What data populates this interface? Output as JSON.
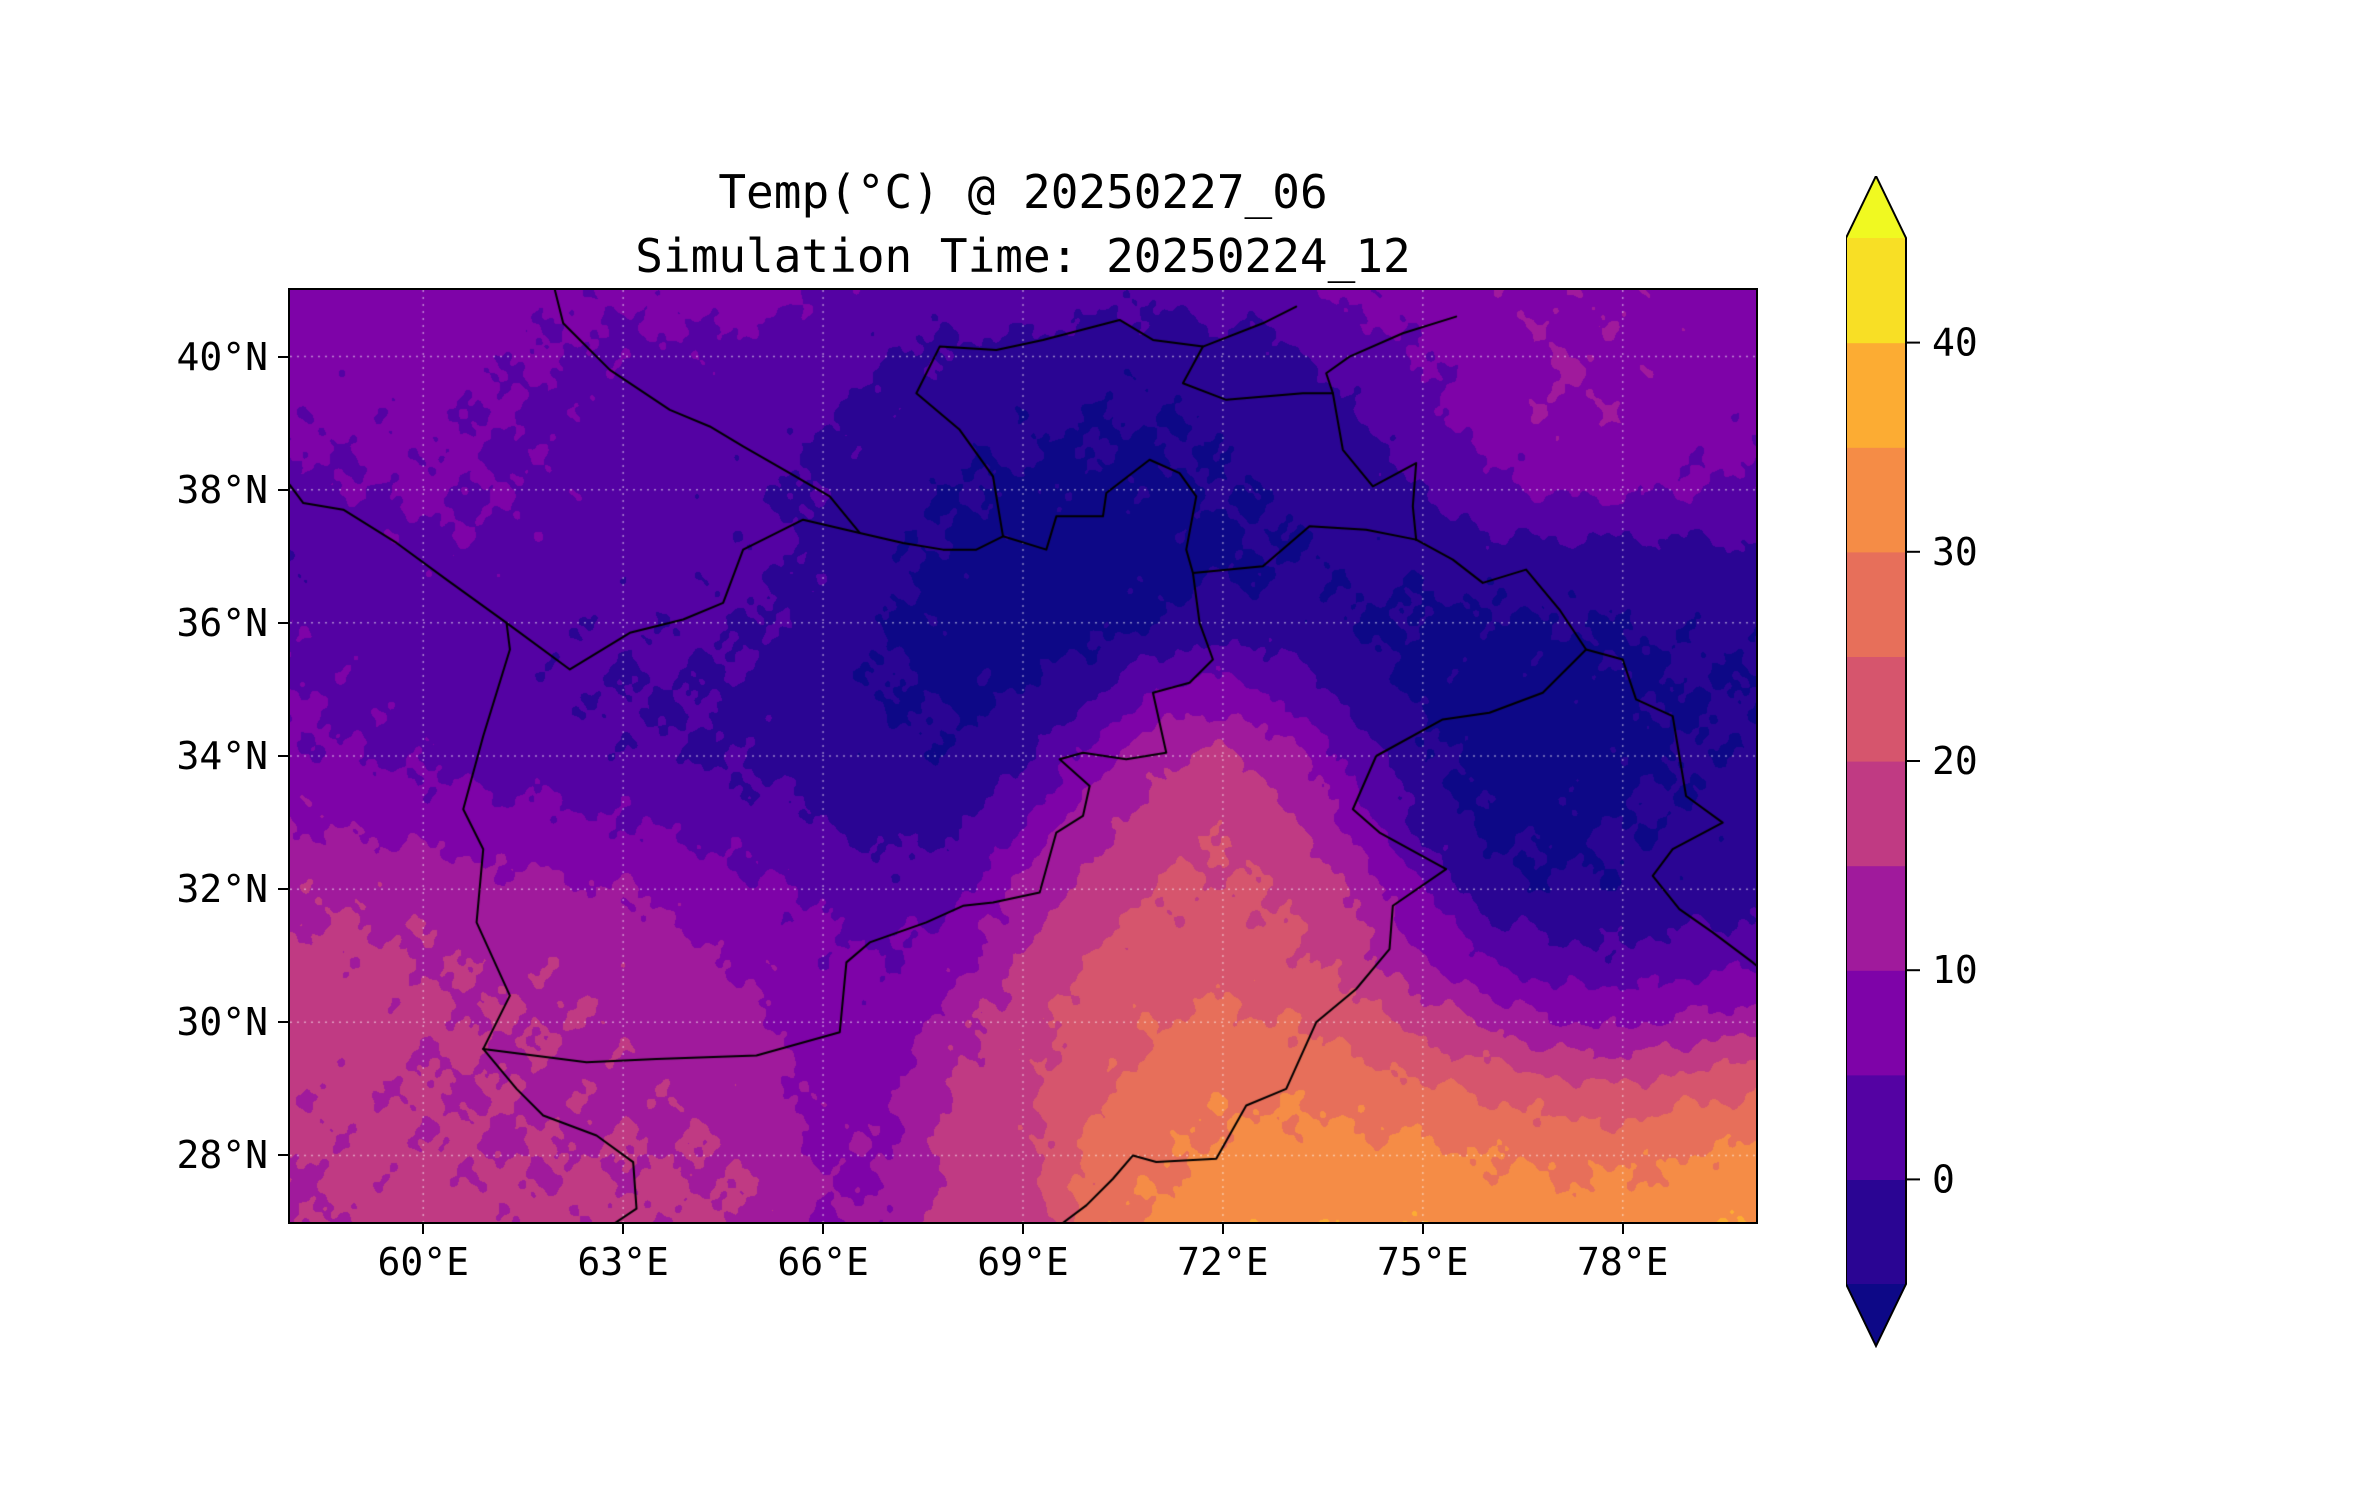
{
  "title": {
    "line1": "Temp(°C) @ 20250227_06",
    "line2": "Simulation Time: 20250224_12"
  },
  "chart_data": {
    "type": "heatmap",
    "title": "Temp(°C) @ 20250227_06",
    "subtitle": "Simulation Time: 20250224_12",
    "variable": "Temp",
    "units": "°C",
    "valid_time": "20250227_06",
    "simulation_time": "20250224_12",
    "grid_on": true,
    "extent": {
      "lon_min": 58,
      "lon_max": 80,
      "lat_min": 27,
      "lat_max": 41
    },
    "x_ticks": [
      {
        "value": 60,
        "label": "60°E"
      },
      {
        "value": 63,
        "label": "63°E"
      },
      {
        "value": 66,
        "label": "66°E"
      },
      {
        "value": 69,
        "label": "69°E"
      },
      {
        "value": 72,
        "label": "72°E"
      },
      {
        "value": 75,
        "label": "75°E"
      },
      {
        "value": 78,
        "label": "78°E"
      }
    ],
    "y_ticks": [
      {
        "value": 40,
        "label": "40°N"
      },
      {
        "value": 38,
        "label": "38°N"
      },
      {
        "value": 36,
        "label": "36°N"
      },
      {
        "value": 34,
        "label": "34°N"
      },
      {
        "value": 32,
        "label": "32°N"
      },
      {
        "value": 30,
        "label": "30°N"
      },
      {
        "value": 28,
        "label": "28°N"
      }
    ],
    "colorbar": {
      "orientation": "vertical",
      "position": "right",
      "extend": "both",
      "levels": [
        -5,
        0,
        5,
        10,
        15,
        20,
        25,
        30,
        35,
        40,
        45
      ],
      "band_colors": [
        "#2a0593",
        "#5402a3",
        "#7e03a8",
        "#a01a9c",
        "#c03a83",
        "#d6556d",
        "#e76f5a",
        "#f58c46",
        "#fcac33",
        "#f8df25"
      ],
      "under_color": "#0d0887",
      "over_color": "#f0f921",
      "tick_values": [
        0,
        10,
        20,
        30,
        40
      ],
      "tick_labels": [
        "0",
        "10",
        "20",
        "30",
        "40"
      ]
    },
    "temperature_grid": {
      "lon_start": 58,
      "lon_step": 1,
      "lat_start": 41,
      "lat_step": -1,
      "values": [
        [
          8,
          8,
          8,
          7,
          6,
          6,
          7,
          7,
          5,
          2,
          3,
          4,
          2,
          1,
          2,
          4,
          6,
          8,
          9,
          9,
          9,
          8,
          8
        ],
        [
          7,
          7,
          7,
          6,
          5,
          4,
          4,
          3,
          2,
          0,
          -1,
          -2,
          -3,
          -3,
          -2,
          -1,
          2,
          5,
          8,
          10,
          9,
          8,
          7
        ],
        [
          6,
          6,
          6,
          5,
          4,
          3,
          3,
          2,
          0,
          -2,
          -3,
          -4,
          -5,
          -5,
          -4,
          -3,
          -1,
          3,
          7,
          10,
          9,
          7,
          6
        ],
        [
          3,
          5,
          6,
          5,
          4,
          3,
          2,
          1,
          -1,
          -3,
          -5,
          -6,
          -6,
          -6,
          -5,
          -4,
          -2,
          0,
          3,
          6,
          6,
          5,
          4
        ],
        [
          0,
          2,
          4,
          4,
          3,
          2,
          2,
          1,
          -1,
          -4,
          -6,
          -7,
          -7,
          -7,
          -6,
          -5,
          -4,
          -3,
          -2,
          -2,
          -2,
          -2,
          -1
        ],
        [
          4,
          3,
          2,
          2,
          1,
          1,
          1,
          0,
          -2,
          -5,
          -7,
          -8,
          -7,
          -5,
          -3,
          -3,
          -5,
          -6,
          -6,
          -5,
          -5,
          -4,
          -4
        ],
        [
          5,
          4,
          3,
          2,
          1,
          0,
          0,
          -1,
          -3,
          -5,
          -6,
          -5,
          -2,
          5,
          7,
          3,
          -3,
          -6,
          -7,
          -7,
          -6,
          -5,
          -5
        ],
        [
          6,
          5,
          4,
          3,
          2,
          1,
          0,
          -1,
          -2,
          -4,
          -4,
          -1,
          7,
          14,
          16,
          12,
          3,
          -4,
          -7,
          -7,
          -6,
          -5,
          -4
        ],
        [
          10,
          9,
          8,
          7,
          6,
          5,
          4,
          2,
          0,
          -2,
          -1,
          5,
          13,
          18,
          19,
          16,
          8,
          -2,
          -6,
          -6,
          -5,
          -4,
          -3
        ],
        [
          14,
          14,
          13,
          12,
          11,
          10,
          8,
          6,
          4,
          2,
          4,
          11,
          17,
          20,
          21,
          19,
          14,
          5,
          -3,
          -5,
          -4,
          -3,
          -2
        ],
        [
          16,
          16,
          15,
          14,
          14,
          13,
          11,
          9,
          6,
          5,
          8,
          15,
          20,
          22,
          23,
          21,
          17,
          10,
          4,
          1,
          1,
          2,
          3
        ],
        [
          17,
          17,
          16,
          15,
          15,
          14,
          13,
          11,
          7,
          7,
          13,
          18,
          22,
          25,
          26,
          25,
          22,
          18,
          14,
          10,
          9,
          11,
          13
        ],
        [
          16,
          16,
          15,
          15,
          14,
          14,
          14,
          13,
          8,
          9,
          16,
          19,
          24,
          27,
          29,
          29,
          28,
          26,
          24,
          22,
          21,
          23,
          25
        ],
        [
          15,
          16,
          16,
          15,
          15,
          15,
          15,
          14,
          9,
          10,
          17,
          18,
          26,
          29,
          31,
          32,
          32,
          31,
          30,
          29,
          29,
          30,
          31
        ],
        [
          14,
          16,
          17,
          16,
          16,
          16,
          16,
          15,
          10,
          11,
          18,
          16,
          28,
          31,
          33,
          34,
          34,
          34,
          33,
          32,
          32,
          33,
          35
        ]
      ]
    },
    "borders": [
      [
        [
          60.9,
          29.6
        ],
        [
          61.3,
          30.4
        ],
        [
          60.8,
          31.5
        ],
        [
          60.9,
          32.6
        ],
        [
          60.6,
          33.2
        ],
        [
          60.9,
          34.3
        ],
        [
          61.3,
          35.6
        ],
        [
          61.25,
          36.0
        ],
        [
          62.2,
          35.3
        ],
        [
          63.1,
          35.85
        ],
        [
          63.9,
          36.05
        ],
        [
          64.5,
          36.3
        ],
        [
          64.8,
          37.1
        ],
        [
          65.7,
          37.55
        ],
        [
          66.55,
          37.35
        ],
        [
          67.2,
          37.2
        ],
        [
          67.8,
          37.1
        ],
        [
          68.3,
          37.1
        ],
        [
          68.7,
          37.3
        ],
        [
          69.35,
          37.1
        ],
        [
          69.5,
          37.6
        ],
        [
          70.2,
          37.6
        ],
        [
          70.25,
          37.95
        ],
        [
          70.9,
          38.45
        ],
        [
          71.35,
          38.25
        ],
        [
          71.6,
          37.9
        ],
        [
          71.45,
          37.1
        ],
        [
          71.55,
          36.75
        ],
        [
          72.6,
          36.85
        ],
        [
          73.3,
          37.45
        ],
        [
          74.15,
          37.4
        ],
        [
          74.9,
          37.25
        ]
      ],
      [
        [
          61.25,
          36.0
        ],
        [
          60.35,
          36.65
        ],
        [
          59.6,
          37.2
        ],
        [
          58.8,
          37.7
        ],
        [
          58.2,
          37.8
        ],
        [
          57.9,
          38.2
        ]
      ],
      [
        [
          71.55,
          36.75
        ],
        [
          71.65,
          36.0
        ],
        [
          71.85,
          35.45
        ],
        [
          71.5,
          35.1
        ],
        [
          70.95,
          34.95
        ],
        [
          71.15,
          34.05
        ],
        [
          70.55,
          33.95
        ],
        [
          69.9,
          34.05
        ],
        [
          69.55,
          33.95
        ],
        [
          70.0,
          33.55
        ],
        [
          69.9,
          33.1
        ],
        [
          69.5,
          32.85
        ],
        [
          69.25,
          31.95
        ],
        [
          68.55,
          31.8
        ],
        [
          68.1,
          31.75
        ],
        [
          67.55,
          31.5
        ],
        [
          66.7,
          31.2
        ],
        [
          66.35,
          30.9
        ],
        [
          66.25,
          29.85
        ],
        [
          65.0,
          29.5
        ],
        [
          63.5,
          29.45
        ],
        [
          62.45,
          29.4
        ],
        [
          60.9,
          29.6
        ]
      ],
      [
        [
          60.9,
          29.6
        ],
        [
          61.4,
          29.0
        ],
        [
          61.8,
          28.6
        ],
        [
          62.6,
          28.3
        ],
        [
          63.15,
          27.9
        ],
        [
          63.2,
          27.2
        ],
        [
          62.75,
          26.9
        ]
      ],
      [
        [
          66.55,
          37.35
        ],
        [
          66.1,
          37.9
        ],
        [
          65.5,
          38.25
        ],
        [
          64.8,
          38.65
        ],
        [
          64.3,
          38.95
        ],
        [
          63.7,
          39.2
        ],
        [
          62.8,
          39.8
        ],
        [
          62.1,
          40.5
        ],
        [
          61.95,
          41.1
        ]
      ],
      [
        [
          68.7,
          37.3
        ],
        [
          68.55,
          38.2
        ],
        [
          68.05,
          38.9
        ],
        [
          67.4,
          39.45
        ],
        [
          67.75,
          40.15
        ],
        [
          68.6,
          40.1
        ],
        [
          69.3,
          40.25
        ],
        [
          70.45,
          40.55
        ],
        [
          70.95,
          40.25
        ],
        [
          71.7,
          40.15
        ],
        [
          72.6,
          40.5
        ],
        [
          73.1,
          40.75
        ]
      ],
      [
        [
          71.7,
          40.15
        ],
        [
          71.4,
          39.6
        ],
        [
          72.05,
          39.35
        ],
        [
          73.2,
          39.45
        ],
        [
          73.65,
          39.45
        ],
        [
          73.55,
          39.75
        ],
        [
          73.9,
          40.0
        ],
        [
          74.7,
          40.35
        ],
        [
          75.5,
          40.6
        ]
      ],
      [
        [
          73.65,
          39.45
        ],
        [
          73.8,
          38.6
        ],
        [
          74.25,
          38.05
        ],
        [
          74.9,
          38.4
        ],
        [
          74.85,
          37.75
        ],
        [
          74.9,
          37.25
        ]
      ],
      [
        [
          74.9,
          37.25
        ],
        [
          75.45,
          36.95
        ],
        [
          75.9,
          36.6
        ],
        [
          76.55,
          36.8
        ],
        [
          77.05,
          36.2
        ],
        [
          77.45,
          35.6
        ],
        [
          78.0,
          35.45
        ],
        [
          78.2,
          34.85
        ],
        [
          78.75,
          34.6
        ],
        [
          78.95,
          33.4
        ],
        [
          79.5,
          33.0
        ],
        [
          78.75,
          32.6
        ],
        [
          78.45,
          32.2
        ],
        [
          78.85,
          31.7
        ],
        [
          79.35,
          31.35
        ],
        [
          79.95,
          30.9
        ],
        [
          80.3,
          30.6
        ]
      ],
      [
        [
          77.45,
          35.6
        ],
        [
          76.8,
          34.95
        ],
        [
          76.0,
          34.65
        ],
        [
          75.3,
          34.55
        ],
        [
          74.3,
          34.0
        ],
        [
          73.95,
          33.2
        ],
        [
          74.35,
          32.85
        ],
        [
          75.35,
          32.3
        ],
        [
          74.55,
          31.75
        ],
        [
          74.5,
          31.1
        ],
        [
          74.0,
          30.5
        ],
        [
          73.4,
          30.0
        ],
        [
          72.95,
          29.0
        ],
        [
          72.35,
          28.75
        ],
        [
          71.9,
          27.95
        ],
        [
          71.0,
          27.9
        ],
        [
          70.65,
          28.0
        ],
        [
          70.35,
          27.65
        ],
        [
          69.95,
          27.25
        ],
        [
          69.55,
          26.95
        ]
      ]
    ],
    "style": {
      "grid_line_color": "rgba(255,255,255,0.5)",
      "border_line_color": "#000000",
      "axis_color": "#000000",
      "background": "#ffffff"
    }
  }
}
